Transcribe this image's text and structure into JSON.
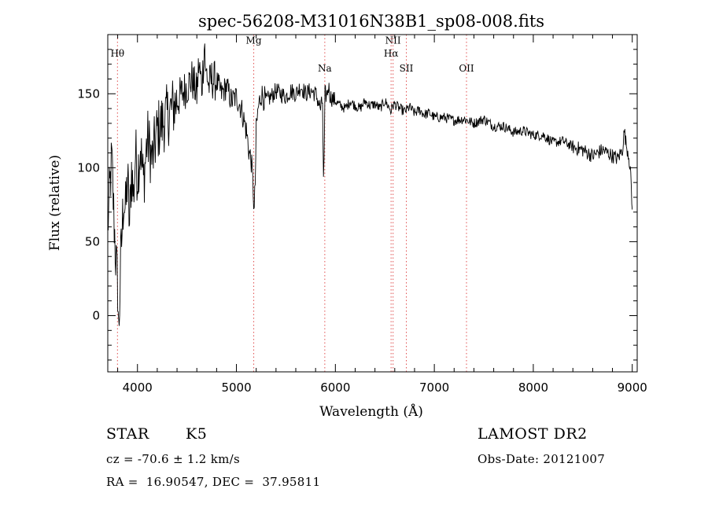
{
  "chart_data": {
    "type": "line",
    "title": "spec-56208-M31016N38B1_sp08-008.fits",
    "xlabel": "Wavelength (Å)",
    "ylabel": "Flux (relative)",
    "xlim": [
      3700,
      9050
    ],
    "ylim": [
      -38,
      190
    ],
    "xticks": [
      4000,
      5000,
      6000,
      7000,
      8000,
      9000
    ],
    "yticks": [
      0,
      50,
      100,
      150
    ],
    "grid": false,
    "line_color": "#000000",
    "marker_color": "#e05050",
    "lines": [
      {
        "label": "Hθ",
        "wavelength": 3798,
        "label_y": 175
      },
      {
        "label": "Mg",
        "wavelength": 5175,
        "label_y": 184
      },
      {
        "label": "Na",
        "wavelength": 5893,
        "label_y": 165
      },
      {
        "label": "NII",
        "wavelength": 6583,
        "label_y": 184
      },
      {
        "label": "Hα",
        "wavelength": 6563,
        "label_y": 175
      },
      {
        "label": "SII",
        "wavelength": 6717,
        "label_y": 165
      },
      {
        "label": "OII",
        "wavelength": 7325,
        "label_y": 165
      }
    ],
    "series": [
      {
        "x": [
          3700,
          3720,
          3740,
          3760,
          3780,
          3800,
          3810,
          3820,
          3830,
          3840,
          3860,
          3880,
          3900,
          3920,
          3940,
          3960,
          3980,
          4000,
          4030,
          4060,
          4100,
          4150,
          4200,
          4250,
          4300,
          4350,
          4400,
          4450,
          4500,
          4550,
          4600,
          4620,
          4650,
          4670,
          4680,
          4690,
          4700,
          4720,
          4750,
          4800,
          4850,
          4900,
          4950,
          5000,
          5050,
          5100,
          5130,
          5150,
          5170,
          5180,
          5190,
          5200,
          5220,
          5250,
          5300,
          5350,
          5400,
          5450,
          5500,
          5550,
          5600,
          5650,
          5700,
          5750,
          5800,
          5850,
          5870,
          5880,
          5890,
          5895,
          5900,
          5910,
          5930,
          5950,
          6000,
          6050,
          6100,
          6150,
          6200,
          6250,
          6300,
          6350,
          6400,
          6450,
          6500,
          6550,
          6560,
          6570,
          6580,
          6600,
          6650,
          6700,
          6750,
          6800,
          6850,
          6900,
          6950,
          7000,
          7100,
          7200,
          7300,
          7400,
          7500,
          7600,
          7700,
          7800,
          7900,
          8000,
          8100,
          8200,
          8300,
          8400,
          8500,
          8550,
          8600,
          8700,
          8800,
          8850,
          8900,
          8920,
          8940,
          8960,
          8980,
          9000
        ],
        "y": [
          60,
          85,
          105,
          70,
          40,
          20,
          -12,
          10,
          35,
          50,
          80,
          70,
          95,
          60,
          100,
          80,
          110,
          95,
          115,
          90,
          120,
          105,
          125,
          130,
          135,
          140,
          145,
          150,
          155,
          160,
          150,
          170,
          155,
          175,
          185,
          160,
          165,
          155,
          160,
          158,
          150,
          155,
          145,
          148,
          140,
          125,
          110,
          105,
          85,
          70,
          90,
          125,
          140,
          150,
          145,
          148,
          152,
          150,
          148,
          152,
          150,
          155,
          150,
          152,
          150,
          140,
          145,
          90,
          120,
          150,
          150,
          148,
          155,
          148,
          145,
          142,
          140,
          145,
          142,
          140,
          145,
          142,
          143,
          140,
          145,
          140,
          138,
          140,
          142,
          143,
          140,
          138,
          141,
          137,
          139,
          136,
          137,
          134,
          134,
          132,
          133,
          130,
          133,
          128,
          128,
          124,
          125,
          122,
          122,
          117,
          118,
          114,
          112,
          110,
          108,
          112,
          108,
          106,
          112,
          125,
          115,
          110,
          100,
          70
        ]
      }
    ],
    "info": {
      "object_class": "STAR",
      "subclass": "K5",
      "survey": "LAMOST DR2",
      "redshift": "cz = -70.6 ± 1.2 km/s",
      "obs_date": "Obs-Date: 20121007",
      "coords": "RA =  16.90547, DEC =  37.95811"
    }
  }
}
